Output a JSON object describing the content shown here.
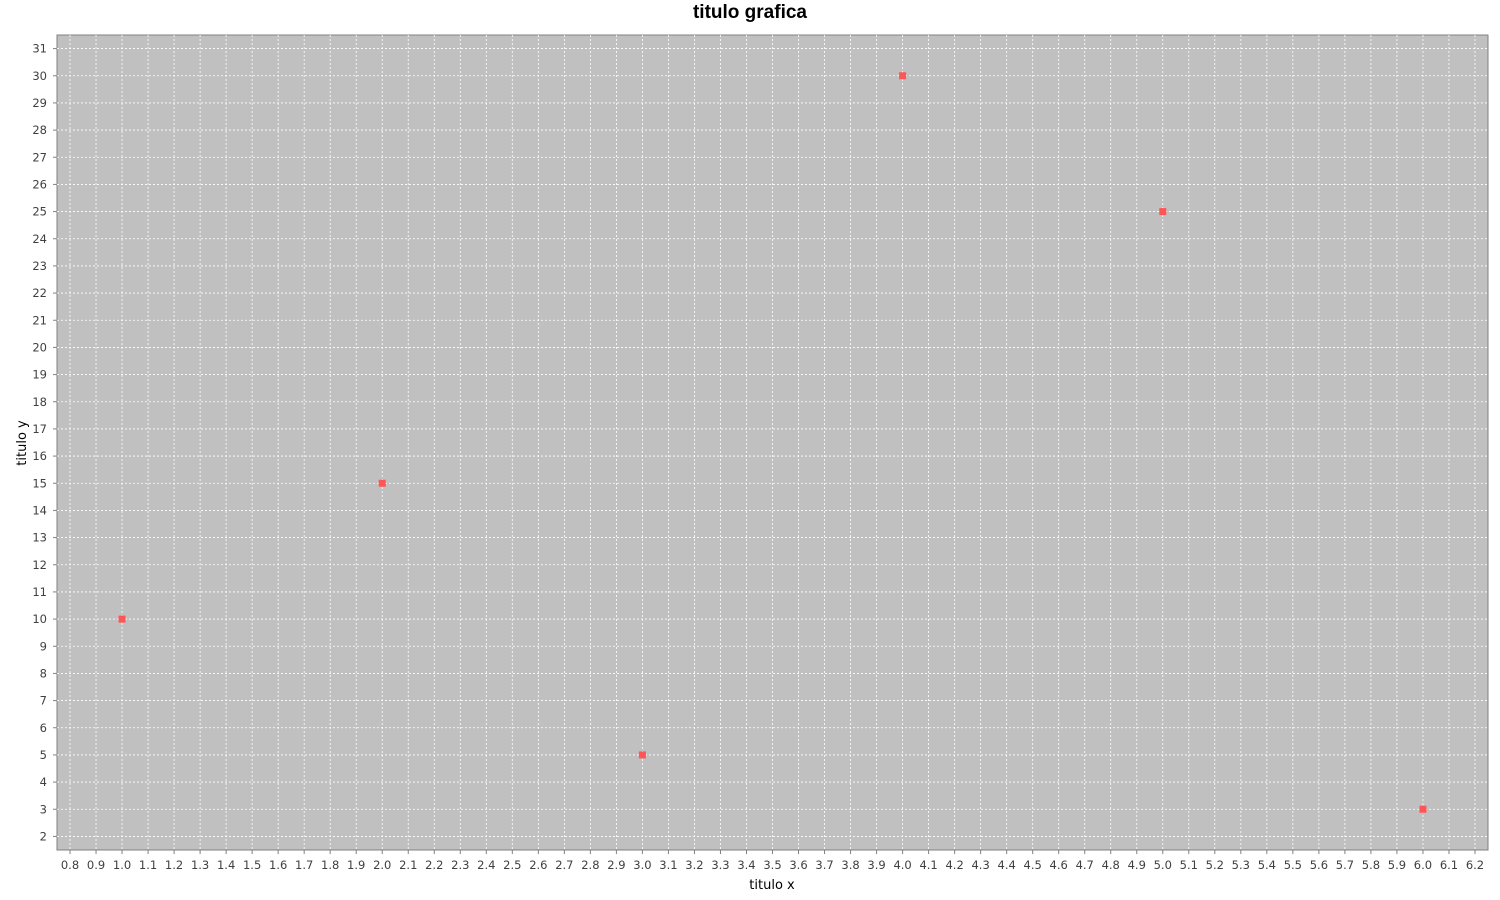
{
  "chart_data": {
    "type": "scatter",
    "title": "titulo grafica",
    "xlabel": "titulo x",
    "ylabel": "titulo y",
    "xlim": [
      0.75,
      6.25
    ],
    "ylim": [
      1.5,
      31.5
    ],
    "x_tick_step": 0.1,
    "x_tick_start": 0.8,
    "x_tick_end": 6.2,
    "y_tick_step": 1,
    "y_tick_start": 2,
    "y_tick_end": 31,
    "grid": true,
    "legend": "none",
    "series": [
      {
        "x": [
          1.0,
          2.0,
          3.0,
          4.0,
          5.0,
          6.0
        ],
        "y": [
          10,
          15,
          5,
          30,
          25,
          3
        ]
      }
    ],
    "colors": {
      "plot_background": "#c0c0c0",
      "gridline": "#ffffff",
      "marker": "#ff5555"
    }
  }
}
